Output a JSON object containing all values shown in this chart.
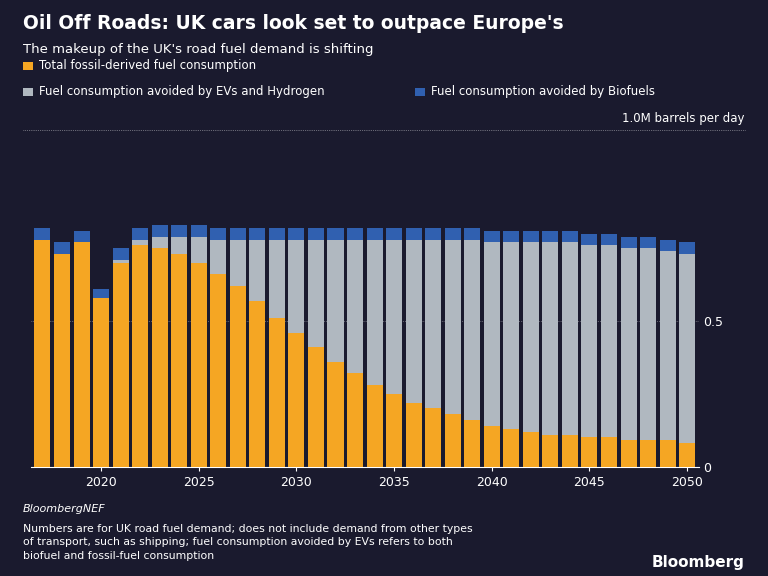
{
  "title": "Oil Off Roads: UK cars look set to outpace Europe's",
  "subtitle": "The makeup of the UK's road fuel demand is shifting",
  "ylabel_label": "1.0M barrels per day",
  "source": "BloombergNEF",
  "footnote": "Numbers are for UK road fuel demand; does not include demand from other types\nof transport, such as shipping; fuel consumption avoided by EVs refers to both\nbiofuel and fossil-fuel consumption",
  "bloomberg_label": "Bloomberg",
  "years": [
    2017,
    2018,
    2019,
    2020,
    2021,
    2022,
    2023,
    2024,
    2025,
    2026,
    2027,
    2028,
    2029,
    2030,
    2031,
    2032,
    2033,
    2034,
    2035,
    2036,
    2037,
    2038,
    2039,
    2040,
    2041,
    2042,
    2043,
    2044,
    2045,
    2046,
    2047,
    2048,
    2049,
    2050
  ],
  "fossil": [
    0.78,
    0.73,
    0.77,
    0.58,
    0.7,
    0.76,
    0.75,
    0.73,
    0.7,
    0.66,
    0.62,
    0.57,
    0.51,
    0.46,
    0.41,
    0.36,
    0.32,
    0.28,
    0.25,
    0.22,
    0.2,
    0.18,
    0.16,
    0.14,
    0.13,
    0.12,
    0.11,
    0.11,
    0.1,
    0.1,
    0.09,
    0.09,
    0.09,
    0.08
  ],
  "ev_hydrogen": [
    0.0,
    0.0,
    0.0,
    0.0,
    0.01,
    0.02,
    0.04,
    0.06,
    0.09,
    0.12,
    0.16,
    0.21,
    0.27,
    0.32,
    0.37,
    0.42,
    0.46,
    0.5,
    0.53,
    0.56,
    0.58,
    0.6,
    0.62,
    0.63,
    0.64,
    0.65,
    0.66,
    0.66,
    0.66,
    0.66,
    0.66,
    0.66,
    0.65,
    0.65
  ],
  "biofuels": [
    0.04,
    0.04,
    0.04,
    0.03,
    0.04,
    0.04,
    0.04,
    0.04,
    0.04,
    0.04,
    0.04,
    0.04,
    0.04,
    0.04,
    0.04,
    0.04,
    0.04,
    0.04,
    0.04,
    0.04,
    0.04,
    0.04,
    0.04,
    0.04,
    0.04,
    0.04,
    0.04,
    0.04,
    0.04,
    0.04,
    0.04,
    0.04,
    0.04,
    0.04
  ],
  "fossil_color": "#f5a623",
  "ev_color": "#b0b8c0",
  "biofuel_color": "#3060b0",
  "bg_color": "#1a1a2e",
  "text_color": "#ffffff",
  "ytick_vals": [
    0,
    0.5
  ],
  "ytick_labels": [
    "0",
    "0.5"
  ],
  "ylim": [
    0,
    0.95
  ],
  "dotted_line_y": 0.88,
  "legend_fossil": "Total fossil-derived fuel consumption",
  "legend_ev": "Fuel consumption avoided by EVs and Hydrogen",
  "legend_bio": "Fuel consumption avoided by Biofuels",
  "tick_years": [
    2020,
    2025,
    2030,
    2035,
    2040,
    2045,
    2050
  ]
}
